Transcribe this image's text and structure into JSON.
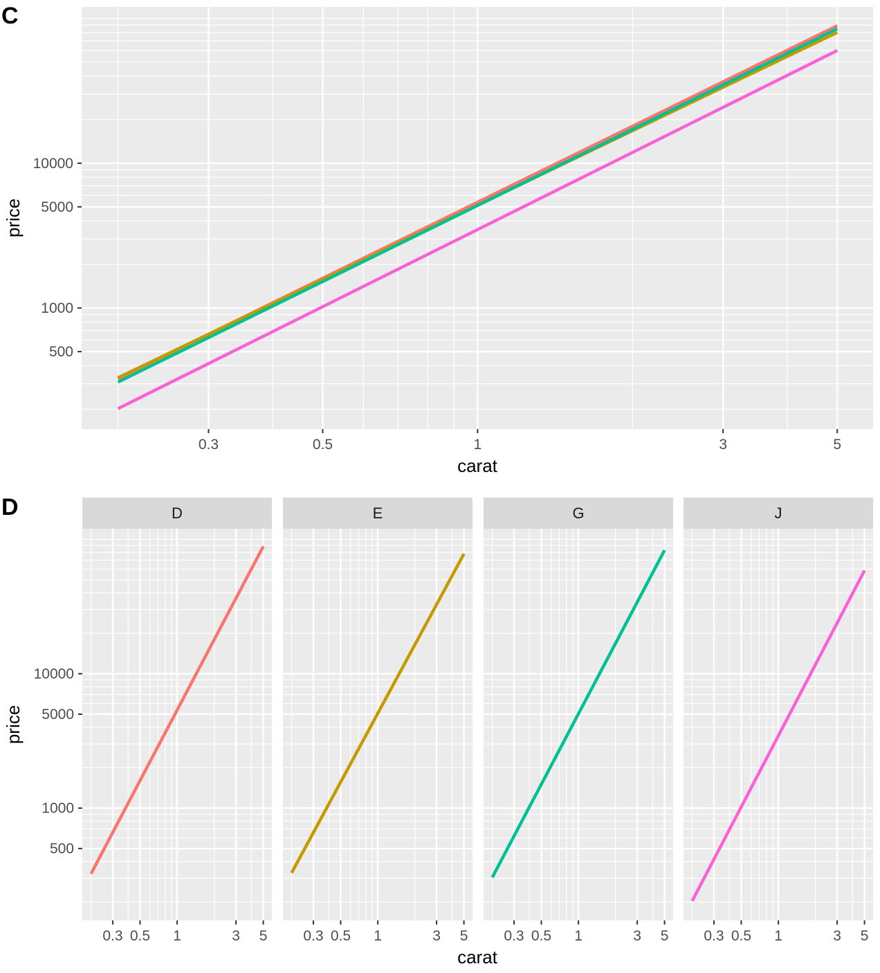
{
  "chart_data": [
    {
      "tag": "C",
      "type": "line",
      "xlabel": "carat",
      "ylabel": "price",
      "x_scale": "log10",
      "y_scale": "log10",
      "xlim": [
        0.17,
        5.87
      ],
      "ylim": [
        146,
        120000
      ],
      "x_ticks": [
        0.3,
        0.5,
        1,
        3,
        5
      ],
      "x_tick_labels": [
        "0.3",
        "0.5",
        "1",
        "3",
        "5"
      ],
      "y_ticks": [
        500,
        1000,
        5000,
        10000
      ],
      "y_tick_labels": [
        "500",
        "1000",
        "5000",
        "10000"
      ],
      "grid": true,
      "series": [
        {
          "group": "D",
          "color": "#F8766D",
          "x": [
            0.2,
            5
          ],
          "y": [
            325,
            89000
          ]
        },
        {
          "group": "E",
          "color": "#C49A00",
          "x": [
            0.2,
            5
          ],
          "y": [
            330,
            80000
          ]
        },
        {
          "group": "G",
          "color": "#00C094",
          "x": [
            0.2,
            5
          ],
          "y": [
            308,
            84700
          ]
        },
        {
          "group": "J",
          "color": "#FB61D7",
          "x": [
            0.2,
            5
          ],
          "y": [
            202,
            60000
          ]
        }
      ]
    },
    {
      "tag": "D",
      "type": "line",
      "facets": [
        "D",
        "E",
        "G",
        "J"
      ],
      "xlabel": "carat",
      "ylabel": "price",
      "x_scale": "log10",
      "y_scale": "log10",
      "xlim": [
        0.17,
        5.87
      ],
      "ylim": [
        146,
        120000
      ],
      "x_ticks": [
        0.3,
        0.5,
        1,
        3,
        5
      ],
      "x_tick_labels": [
        "0.3",
        "0.5",
        "1",
        "3",
        "5"
      ],
      "y_ticks": [
        500,
        1000,
        5000,
        10000
      ],
      "y_tick_labels": [
        "500",
        "1000",
        "5000",
        "10000"
      ],
      "grid": true,
      "series": [
        {
          "facet": "D",
          "color": "#F8766D",
          "x": [
            0.2,
            5
          ],
          "y": [
            325,
            88700
          ]
        },
        {
          "facet": "E",
          "color": "#C49A00",
          "x": [
            0.2,
            5
          ],
          "y": [
            330,
            78000
          ]
        },
        {
          "facet": "G",
          "color": "#00C094",
          "x": [
            0.2,
            5
          ],
          "y": [
            305,
            83000
          ]
        },
        {
          "facet": "J",
          "color": "#FB61D7",
          "x": [
            0.2,
            5
          ],
          "y": [
            204,
            58600
          ]
        }
      ]
    }
  ]
}
